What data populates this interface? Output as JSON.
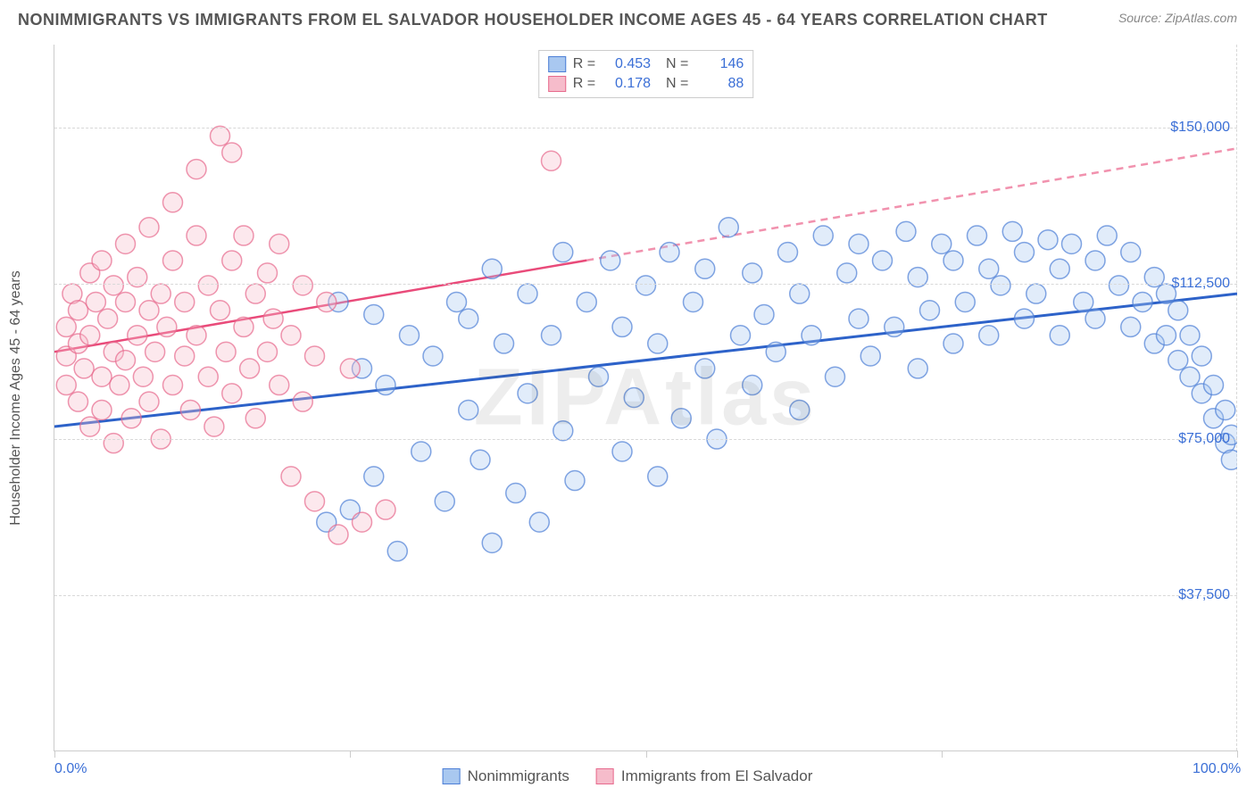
{
  "title": "NONIMMIGRANTS VS IMMIGRANTS FROM EL SALVADOR HOUSEHOLDER INCOME AGES 45 - 64 YEARS CORRELATION CHART",
  "source": "Source: ZipAtlas.com",
  "watermark": "ZIPAtlas",
  "yaxis_title": "Householder Income Ages 45 - 64 years",
  "chart": {
    "type": "scatter",
    "background_color": "#ffffff",
    "grid_color": "#d8d8d8",
    "axis_color": "#cccccc",
    "text_color": "#555555",
    "value_color": "#3b6fd6",
    "marker_radius": 11,
    "marker_fill_opacity": 0.35,
    "marker_stroke_width": 1.5,
    "xlim": [
      0,
      100
    ],
    "ylim": [
      0,
      170000
    ],
    "xticks": [
      0,
      25,
      50,
      75,
      100
    ],
    "xtick_labels": [
      "0.0%",
      "",
      "",
      "",
      "100.0%"
    ],
    "ygrid": [
      37500,
      75000,
      112500,
      150000
    ],
    "ygrid_labels": [
      "$37,500",
      "$75,000",
      "$112,500",
      "$150,000"
    ],
    "series": [
      {
        "name": "Nonimmigrants",
        "color_fill": "#a9c8f0",
        "color_stroke": "#4d7fd6",
        "R": "0.453",
        "N": "146",
        "trend": {
          "x1": 0,
          "y1": 78000,
          "x2": 100,
          "y2": 110000,
          "color": "#2d62c9",
          "width": 3
        },
        "points": [
          [
            23,
            55000
          ],
          [
            24,
            108000
          ],
          [
            25,
            58000
          ],
          [
            26,
            92000
          ],
          [
            27,
            66000
          ],
          [
            27,
            105000
          ],
          [
            28,
            88000
          ],
          [
            29,
            48000
          ],
          [
            30,
            100000
          ],
          [
            31,
            72000
          ],
          [
            32,
            95000
          ],
          [
            33,
            60000
          ],
          [
            34,
            108000
          ],
          [
            35,
            82000
          ],
          [
            35,
            104000
          ],
          [
            36,
            70000
          ],
          [
            37,
            116000
          ],
          [
            37,
            50000
          ],
          [
            38,
            98000
          ],
          [
            39,
            62000
          ],
          [
            40,
            110000
          ],
          [
            40,
            86000
          ],
          [
            41,
            55000
          ],
          [
            42,
            100000
          ],
          [
            43,
            77000
          ],
          [
            43,
            120000
          ],
          [
            44,
            65000
          ],
          [
            45,
            108000
          ],
          [
            46,
            90000
          ],
          [
            47,
            118000
          ],
          [
            48,
            72000
          ],
          [
            48,
            102000
          ],
          [
            49,
            85000
          ],
          [
            50,
            112000
          ],
          [
            51,
            66000
          ],
          [
            51,
            98000
          ],
          [
            52,
            120000
          ],
          [
            53,
            80000
          ],
          [
            54,
            108000
          ],
          [
            55,
            92000
          ],
          [
            55,
            116000
          ],
          [
            56,
            75000
          ],
          [
            57,
            126000
          ],
          [
            58,
            100000
          ],
          [
            59,
            88000
          ],
          [
            59,
            115000
          ],
          [
            60,
            105000
          ],
          [
            61,
            96000
          ],
          [
            62,
            120000
          ],
          [
            63,
            82000
          ],
          [
            63,
            110000
          ],
          [
            64,
            100000
          ],
          [
            65,
            124000
          ],
          [
            66,
            90000
          ],
          [
            67,
            115000
          ],
          [
            68,
            104000
          ],
          [
            68,
            122000
          ],
          [
            69,
            95000
          ],
          [
            70,
            118000
          ],
          [
            71,
            102000
          ],
          [
            72,
            125000
          ],
          [
            73,
            92000
          ],
          [
            73,
            114000
          ],
          [
            74,
            106000
          ],
          [
            75,
            122000
          ],
          [
            76,
            98000
          ],
          [
            76,
            118000
          ],
          [
            77,
            108000
          ],
          [
            78,
            124000
          ],
          [
            79,
            100000
          ],
          [
            79,
            116000
          ],
          [
            80,
            112000
          ],
          [
            81,
            125000
          ],
          [
            82,
            104000
          ],
          [
            82,
            120000
          ],
          [
            83,
            110000
          ],
          [
            84,
            123000
          ],
          [
            85,
            100000
          ],
          [
            85,
            116000
          ],
          [
            86,
            122000
          ],
          [
            87,
            108000
          ],
          [
            88,
            118000
          ],
          [
            88,
            104000
          ],
          [
            89,
            124000
          ],
          [
            90,
            112000
          ],
          [
            91,
            102000
          ],
          [
            91,
            120000
          ],
          [
            92,
            108000
          ],
          [
            93,
            114000
          ],
          [
            93,
            98000
          ],
          [
            94,
            110000
          ],
          [
            94,
            100000
          ],
          [
            95,
            106000
          ],
          [
            95,
            94000
          ],
          [
            96,
            100000
          ],
          [
            96,
            90000
          ],
          [
            97,
            95000
          ],
          [
            97,
            86000
          ],
          [
            98,
            88000
          ],
          [
            98,
            80000
          ],
          [
            99,
            82000
          ],
          [
            99,
            74000
          ],
          [
            99.5,
            76000
          ],
          [
            99.5,
            70000
          ]
        ]
      },
      {
        "name": "Immigrants from El Salvador",
        "color_fill": "#f6bccb",
        "color_stroke": "#e76a8d",
        "R": "0.178",
        "N": "88",
        "trend": {
          "x1": 0,
          "y1": 96000,
          "x2": 100,
          "y2": 145000,
          "solid_to_x": 45,
          "color": "#e94b7a",
          "width": 2.5
        },
        "points": [
          [
            1,
            95000
          ],
          [
            1,
            102000
          ],
          [
            1,
            88000
          ],
          [
            1.5,
            110000
          ],
          [
            2,
            98000
          ],
          [
            2,
            84000
          ],
          [
            2,
            106000
          ],
          [
            2.5,
            92000
          ],
          [
            3,
            115000
          ],
          [
            3,
            100000
          ],
          [
            3,
            78000
          ],
          [
            3.5,
            108000
          ],
          [
            4,
            90000
          ],
          [
            4,
            118000
          ],
          [
            4,
            82000
          ],
          [
            4.5,
            104000
          ],
          [
            5,
            96000
          ],
          [
            5,
            112000
          ],
          [
            5,
            74000
          ],
          [
            5.5,
            88000
          ],
          [
            6,
            108000
          ],
          [
            6,
            94000
          ],
          [
            6,
            122000
          ],
          [
            6.5,
            80000
          ],
          [
            7,
            100000
          ],
          [
            7,
            114000
          ],
          [
            7.5,
            90000
          ],
          [
            8,
            106000
          ],
          [
            8,
            84000
          ],
          [
            8,
            126000
          ],
          [
            8.5,
            96000
          ],
          [
            9,
            110000
          ],
          [
            9,
            75000
          ],
          [
            9.5,
            102000
          ],
          [
            10,
            88000
          ],
          [
            10,
            118000
          ],
          [
            10,
            132000
          ],
          [
            11,
            95000
          ],
          [
            11,
            108000
          ],
          [
            11.5,
            82000
          ],
          [
            12,
            124000
          ],
          [
            12,
            100000
          ],
          [
            12,
            140000
          ],
          [
            13,
            90000
          ],
          [
            13,
            112000
          ],
          [
            13.5,
            78000
          ],
          [
            14,
            106000
          ],
          [
            14,
            148000
          ],
          [
            14.5,
            96000
          ],
          [
            15,
            118000
          ],
          [
            15,
            86000
          ],
          [
            15,
            144000
          ],
          [
            16,
            102000
          ],
          [
            16,
            124000
          ],
          [
            16.5,
            92000
          ],
          [
            17,
            110000
          ],
          [
            17,
            80000
          ],
          [
            18,
            115000
          ],
          [
            18,
            96000
          ],
          [
            18.5,
            104000
          ],
          [
            19,
            88000
          ],
          [
            19,
            122000
          ],
          [
            20,
            100000
          ],
          [
            20,
            66000
          ],
          [
            21,
            112000
          ],
          [
            21,
            84000
          ],
          [
            22,
            95000
          ],
          [
            22,
            60000
          ],
          [
            23,
            108000
          ],
          [
            24,
            52000
          ],
          [
            25,
            92000
          ],
          [
            26,
            55000
          ],
          [
            28,
            58000
          ],
          [
            42,
            142000
          ]
        ]
      }
    ]
  }
}
